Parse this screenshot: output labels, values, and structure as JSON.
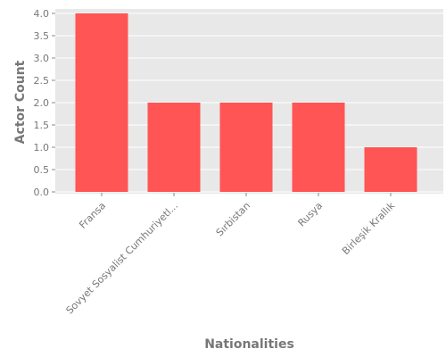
{
  "chart_data": {
    "type": "bar",
    "categories": [
      "Fransa",
      "Sovyet Sosyalist Cumhuriyetl...",
      "Sırbistan",
      "Rusya",
      "Birleşik Krallık"
    ],
    "values": [
      4,
      2,
      2,
      2,
      1
    ],
    "xlabel": "Nationalities",
    "ylabel": "Actor Count",
    "ylim": [
      0,
      4.0
    ],
    "yticks": [
      "0.0",
      "0.5",
      "1.0",
      "1.5",
      "2.0",
      "2.5",
      "3.0",
      "3.5",
      "4.0"
    ],
    "grid": true,
    "legend": "none",
    "colors": {
      "bar": "#ff5555",
      "plot_background": "#e8e8e8",
      "grid": "#ffffff",
      "text": "#777777"
    }
  }
}
